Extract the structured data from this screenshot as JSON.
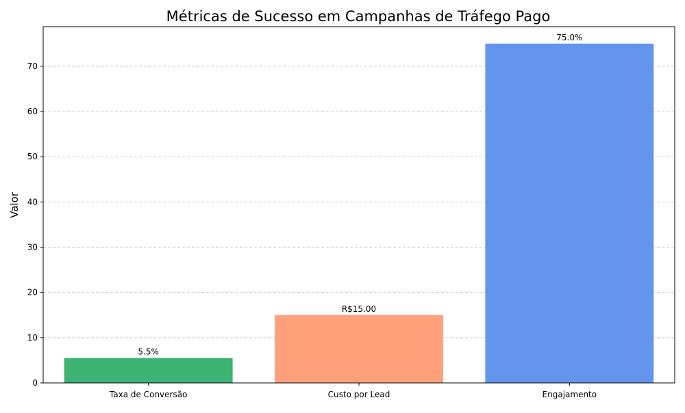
{
  "chart_data": {
    "type": "bar",
    "title": "Métricas de Sucesso em Campanhas de Tráfego Pago",
    "xlabel": "",
    "ylabel": "Valor",
    "categories": [
      "Taxa de Conversão",
      "Custo por Lead",
      "Engajamento"
    ],
    "values": [
      5.5,
      15,
      75
    ],
    "value_labels": [
      "5.5%",
      "R$15.00",
      "75.0%"
    ],
    "colors": [
      "#3cb371",
      "#ffa07a",
      "#6495ed"
    ],
    "ylim": [
      0,
      78.75
    ],
    "yticks": [
      0,
      10,
      20,
      30,
      40,
      50,
      60,
      70
    ],
    "grid": "y-dashed",
    "legend": "none"
  }
}
